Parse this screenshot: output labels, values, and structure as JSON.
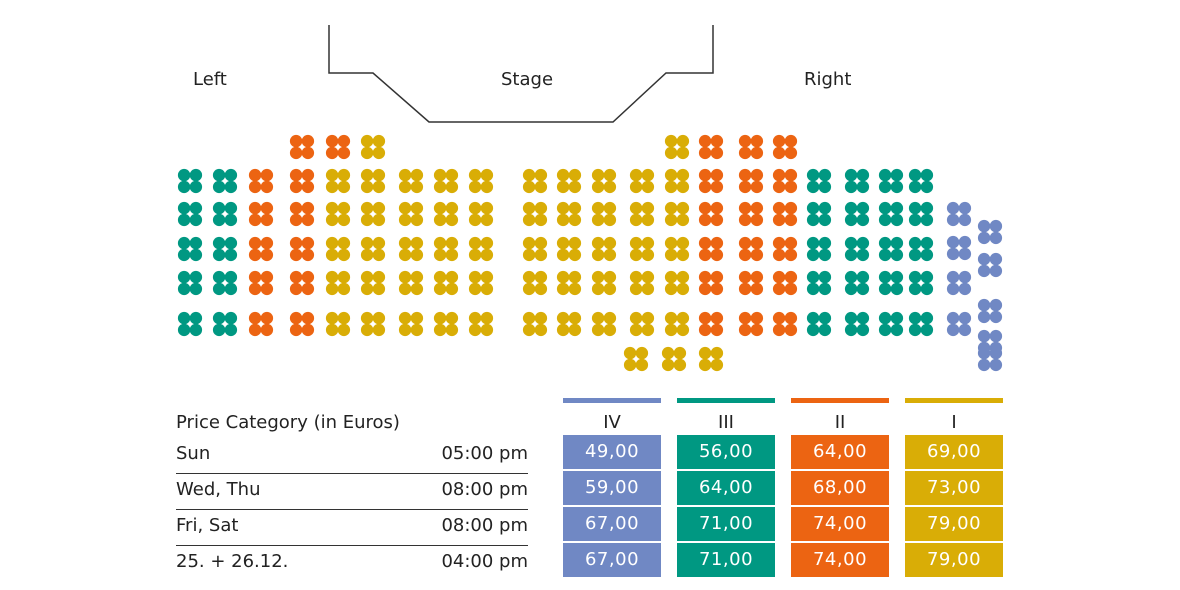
{
  "labels": {
    "left": "Left",
    "stage": "Stage",
    "right": "Right"
  },
  "categories": [
    {
      "name": "IV",
      "color": "#7088c4",
      "prices": [
        "49,00",
        "59,00",
        "67,00",
        "67,00"
      ]
    },
    {
      "name": "III",
      "color": "#009882",
      "prices": [
        "56,00",
        "64,00",
        "71,00",
        "71,00"
      ]
    },
    {
      "name": "II",
      "color": "#ec6412",
      "prices": [
        "64,00",
        "68,00",
        "74,00",
        "74,00"
      ]
    },
    {
      "name": "I",
      "color": "#d9ad06",
      "prices": [
        "69,00",
        "73,00",
        "79,00",
        "79,00"
      ]
    }
  ],
  "price_table": {
    "title": "Price Category (in Euros)",
    "rows": [
      {
        "days": "Sun",
        "time": "05:00 pm"
      },
      {
        "days": "Wed, Thu",
        "time": "08:00 pm"
      },
      {
        "days": "Fri, Sat",
        "time": "08:00 pm"
      },
      {
        "days": "25. + 26.12.",
        "time": "04:00 pm"
      }
    ]
  },
  "seating": {
    "rows": [
      "-   -   -   II  II  I   -   -   -      -   -   -   -   I   II  II  II  -   -   -   -   -   -",
      "III III II  II  I   I   I   I   I      I   I   I   I   I   II  II  II  III III III III -   -",
      "III III II  II  I   I   I   I   I      I   I   I   I   I   II  II  II  III III III III IV  IV",
      "III III II  II  I   I   I   I   I      I   I   I   I   I   II  II  II  III III III III IV  IV",
      "III III II  II  I   I   I   I   I      I   I   I   I   I   II  II  II  III III III III IV  IV",
      "III III II  II  I   I   I   I   I      I   I   I   I   I   II  II  II  III III III III IV  IV",
      "-   -   -   -   -   -   -   -   -      -   -   -   I   I   I   -   -   -   -   -   -   -   IV"
    ]
  }
}
